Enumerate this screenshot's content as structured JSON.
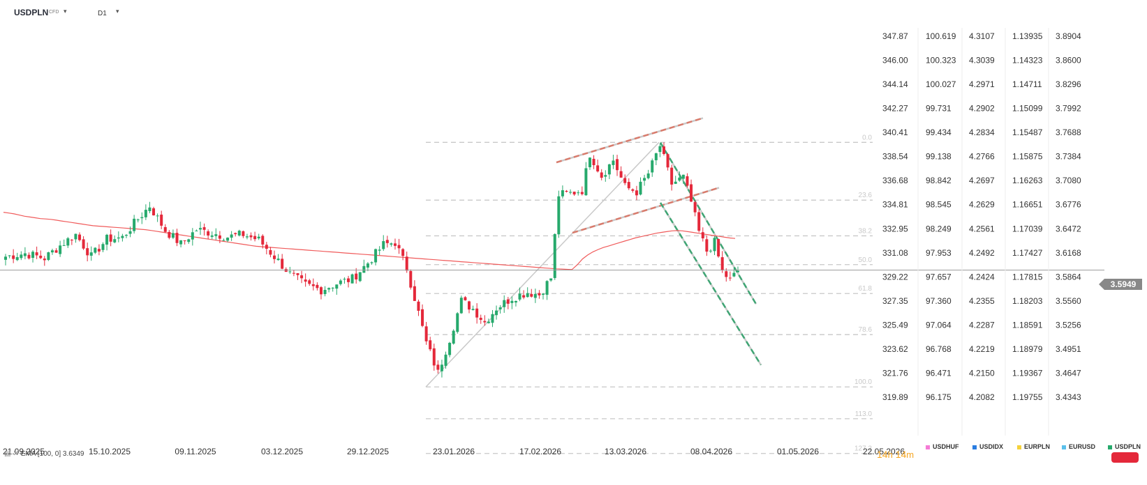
{
  "header": {
    "symbol": "USDPLN",
    "symbol_type": "CFD",
    "timeframe": "D1"
  },
  "indicator": {
    "label": "EMA [100, 0] 3.6349",
    "color": "#f05a5a"
  },
  "countdown": {
    "hours": "14",
    "h": "h",
    "minutes": "14",
    "m": "m"
  },
  "current_price": {
    "value": "3.5949",
    "level": 3.5949
  },
  "price_scales": [
    {
      "name": "USDHUF",
      "color": "#f57bd6",
      "values": [
        "347.87",
        "346.00",
        "344.14",
        "342.27",
        "340.41",
        "338.54",
        "336.68",
        "334.81",
        "332.95",
        "331.08",
        "329.22",
        "327.35",
        "325.49",
        "323.62",
        "321.76",
        "319.89"
      ]
    },
    {
      "name": "USDIDX",
      "color": "#2a7de1",
      "values": [
        "100.619",
        "100.323",
        "100.027",
        "99.731",
        "99.434",
        "99.138",
        "98.842",
        "98.545",
        "98.249",
        "97.953",
        "97.657",
        "97.360",
        "97.064",
        "96.768",
        "96.471",
        "96.175"
      ]
    },
    {
      "name": "EURPLN",
      "color": "#f5d23a",
      "values": [
        "4.3107",
        "4.3039",
        "4.2971",
        "4.2902",
        "4.2834",
        "4.2766",
        "4.2697",
        "4.2629",
        "4.2561",
        "4.2492",
        "4.2424",
        "4.2355",
        "4.2287",
        "4.2219",
        "4.2150",
        "4.2082"
      ]
    },
    {
      "name": "EURUSD",
      "color": "#5bc0eb",
      "values": [
        "1.13935",
        "1.14323",
        "1.14711",
        "1.15099",
        "1.15487",
        "1.15875",
        "1.16263",
        "1.16651",
        "1.17039",
        "1.17427",
        "1.17815",
        "1.18203",
        "1.18591",
        "1.18979",
        "1.19367",
        "1.19755"
      ]
    },
    {
      "name": "USDPLN",
      "color": "#26a96c",
      "values": [
        "3.8904",
        "3.8600",
        "3.8296",
        "3.7992",
        "3.7688",
        "3.7384",
        "3.7080",
        "3.6776",
        "3.6472",
        "3.6168",
        "3.5864",
        "3.5560",
        "3.5256",
        "3.4951",
        "3.4647",
        "3.4343"
      ]
    }
  ],
  "x_axis_labels": [
    "21.09.2025",
    "15.10.2025",
    "09.11.2025",
    "03.12.2025",
    "29.12.2025",
    "23.01.2026",
    "17.02.2026",
    "13.03.2026",
    "08.04.2026",
    "01.05.2026",
    "22.05.2026"
  ],
  "fibonacci": {
    "levels": [
      {
        "label": "0.0",
        "price": 3.7563
      },
      {
        "label": "23.6",
        "price": 3.6833
      },
      {
        "label": "38.2",
        "price": 3.6382
      },
      {
        "label": "50.0",
        "price": 3.6018
      },
      {
        "label": "61.8",
        "price": 3.5653
      },
      {
        "label": "78.6",
        "price": 3.5134
      },
      {
        "label": "100.0",
        "price": 3.4473
      },
      {
        "label": "113.0",
        "price": 3.4071
      },
      {
        "label": "127.2",
        "price": 3.3632
      }
    ]
  },
  "chart_data": {
    "type": "candlestick",
    "symbol": "USDPLN",
    "timeframe": "D1",
    "ylim": [
      3.4343,
      3.8904
    ],
    "colors": {
      "up": "#26a96c",
      "down": "#e4283a",
      "ema": "#f05a5a",
      "fib": "#c8c8c8",
      "trend_red": "#d97b6c",
      "trend_green": "#3fa574"
    },
    "candles": [],
    "ema_100": [
      3.668,
      3.667,
      3.666,
      3.6645,
      3.663,
      3.662,
      3.661,
      3.66,
      3.6595,
      3.659,
      3.658,
      3.657,
      3.656,
      3.655,
      3.654,
      3.653,
      3.652,
      3.651,
      3.6505,
      3.65,
      3.6495,
      3.649,
      3.6485,
      3.648,
      3.6475,
      3.647,
      3.6465,
      3.646,
      3.645,
      3.644,
      3.643,
      3.642,
      3.641,
      3.64,
      3.639,
      3.638,
      3.637,
      3.636,
      3.635,
      3.634,
      3.633,
      3.632,
      3.631,
      3.63,
      3.629,
      3.628,
      3.627,
      3.626,
      3.625,
      3.6245,
      3.624,
      3.6235,
      3.623,
      3.6225,
      3.622,
      3.6215,
      3.621,
      3.6205,
      3.62,
      3.6195,
      3.619,
      3.6185,
      3.618,
      3.6175,
      3.617,
      3.6165,
      3.616,
      3.6155,
      3.615,
      3.6145,
      3.614,
      3.6135,
      3.613,
      3.6125,
      3.612,
      3.6115,
      3.611,
      3.6105,
      3.61,
      3.6095,
      3.609,
      3.6085,
      3.608,
      3.6075,
      3.607,
      3.6065,
      3.606,
      3.6055,
      3.605,
      3.6045,
      3.604,
      3.6035,
      3.603,
      3.6025,
      3.602,
      3.6015,
      3.601,
      3.6005,
      3.6,
      3.5995,
      3.599,
      3.5985,
      3.598,
      3.5975,
      3.597,
      3.5965,
      3.5962,
      3.5959,
      3.5956,
      3.6015,
      3.609,
      3.614,
      3.618,
      3.621,
      3.6235,
      3.6255,
      3.6275,
      3.6295,
      3.6315,
      3.6335,
      3.6355,
      3.637,
      3.6385,
      3.64,
      3.6415,
      3.6425,
      3.6435,
      3.6445,
      3.6448,
      3.6445,
      3.6435,
      3.6425,
      3.6415,
      3.6405,
      3.6395,
      3.6385,
      3.6375,
      3.6365,
      3.6355,
      3.6349
    ]
  }
}
